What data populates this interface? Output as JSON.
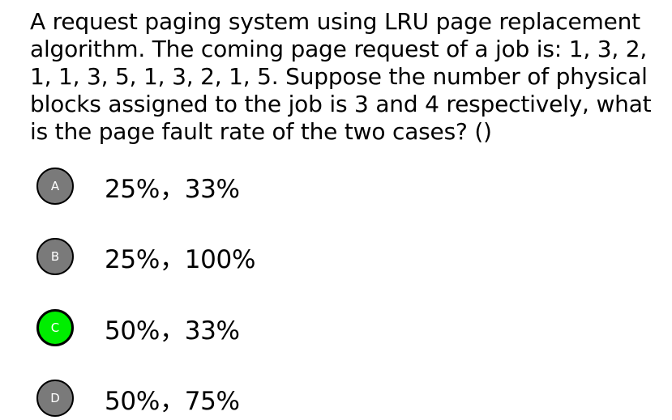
{
  "question": {
    "text": "A request paging system using LRU page replacement algorithm. The coming page request of a job is: 1, 3, 2, 1, 1, 3, 5, 1, 3, 2, 1, 5. Suppose the number of physical blocks assigned to the job is 3 and 4 respectively, what is the page fault rate of the two cases? ()"
  },
  "options": [
    {
      "letter": "A",
      "text": "25%，33%",
      "badge_color": "#7a7a7a",
      "highlighted": false
    },
    {
      "letter": "B",
      "text": "25%，100%",
      "badge_color": "#7a7a7a",
      "highlighted": false
    },
    {
      "letter": "C",
      "text": "50%，33%",
      "badge_color": "#00ee00",
      "highlighted": true
    },
    {
      "letter": "D",
      "text": "50%，75%",
      "badge_color": "#7a7a7a",
      "highlighted": false
    }
  ]
}
